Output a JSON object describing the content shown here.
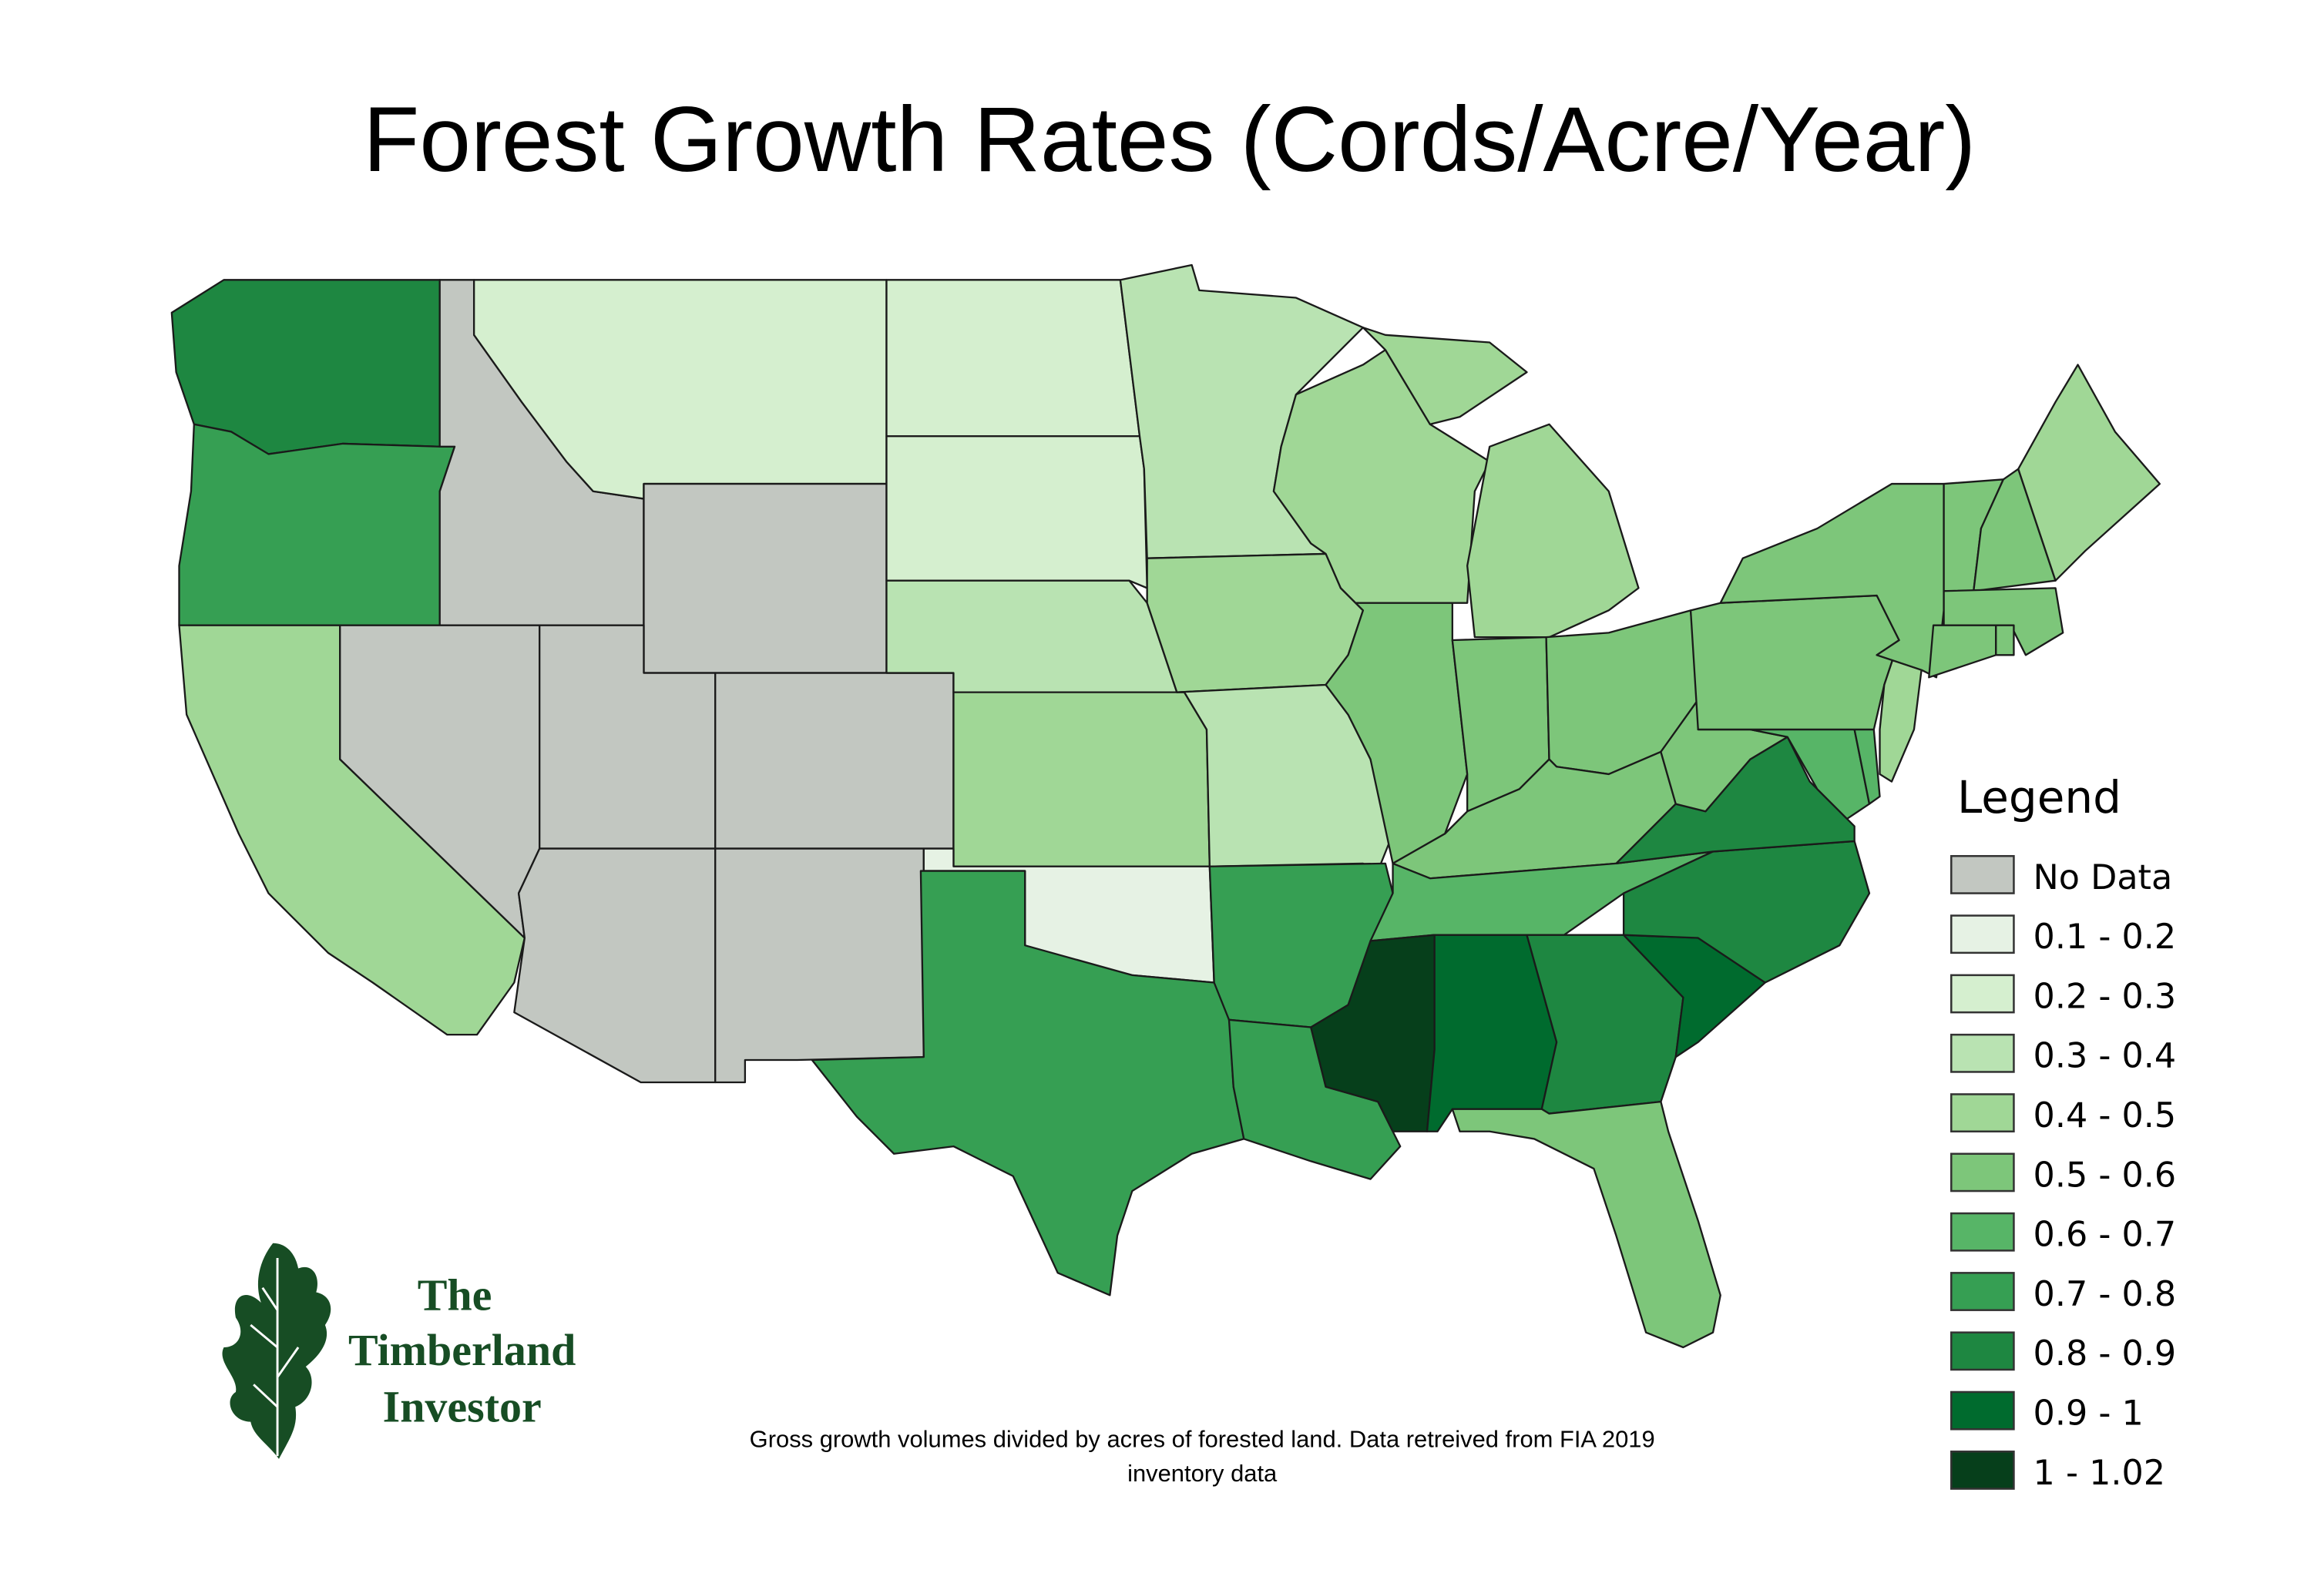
{
  "title": "Forest Growth Rates (Cords/Acre/Year)",
  "caption": [
    "Gross growth volumes divided by acres of forested land. Data retreived from FIA 2019",
    "inventory data"
  ],
  "logo": {
    "lines": [
      "The",
      "Timberland",
      "Investor"
    ],
    "color": "#174d24",
    "icon": "oak-leaf-icon"
  },
  "legend": {
    "title": "Legend",
    "classes": [
      {
        "label": "No Data",
        "color": "#c2c7c1"
      },
      {
        "label": "0.1 - 0.2",
        "color": "#e6f2e4"
      },
      {
        "label": "0.2 - 0.3",
        "color": "#d5efcf"
      },
      {
        "label": "0.3 - 0.4",
        "color": "#b9e3b2"
      },
      {
        "label": "0.4 - 0.5",
        "color": "#a0d796"
      },
      {
        "label": "0.5 - 0.6",
        "color": "#7dc67a"
      },
      {
        "label": "0.6 - 0.7",
        "color": "#57b567"
      },
      {
        "label": "0.7 - 0.8",
        "color": "#369f53"
      },
      {
        "label": "0.8 - 0.9",
        "color": "#1e8741"
      },
      {
        "label": "0.9 - 1",
        "color": "#006b2e"
      },
      {
        "label": "1 - 1.02",
        "color": "#063f1b"
      }
    ]
  },
  "chart_data": {
    "type": "choropleth",
    "title": "Forest Growth Rates (Cords/Acre/Year)",
    "states": {
      "WA": "0.8 - 0.9",
      "OR": "0.7 - 0.8",
      "CA": "0.4 - 0.5",
      "ID": "No Data",
      "NV": "No Data",
      "MT": "0.2 - 0.3",
      "WY": "No Data",
      "UT": "No Data",
      "CO": "No Data",
      "AZ": "No Data",
      "NM": "No Data",
      "ND": "0.2 - 0.3",
      "SD": "0.2 - 0.3",
      "NE": "0.3 - 0.4",
      "KS": "0.4 - 0.5",
      "OK": "0.1 - 0.2",
      "TX": "0.7 - 0.8",
      "MN": "0.3 - 0.4",
      "IA": "0.4 - 0.5",
      "MO": "0.3 - 0.4",
      "AR": "0.7 - 0.8",
      "LA": "0.7 - 0.8",
      "WI": "0.4 - 0.5",
      "MI": "0.4 - 0.5",
      "IL": "0.5 - 0.6",
      "IN": "0.5 - 0.6",
      "OH": "0.5 - 0.6",
      "KY": "0.5 - 0.6",
      "TN": "0.6 - 0.7",
      "MS": "1 - 1.02",
      "AL": "0.9 - 1",
      "GA": "0.8 - 0.9",
      "FL": "0.5 - 0.6",
      "SC": "0.9 - 1",
      "NC": "0.8 - 0.9",
      "VA": "0.8 - 0.9",
      "WV": "0.5 - 0.6",
      "MD": "0.6 - 0.7",
      "DE": "0.6 - 0.7",
      "PA": "0.5 - 0.6",
      "NJ": "0.4 - 0.5",
      "NY": "0.5 - 0.6",
      "VT": "0.5 - 0.6",
      "NH": "0.5 - 0.6",
      "ME": "0.4 - 0.5",
      "MA": "0.5 - 0.6",
      "CT": "0.5 - 0.6",
      "RI": "0.5 - 0.6"
    }
  }
}
